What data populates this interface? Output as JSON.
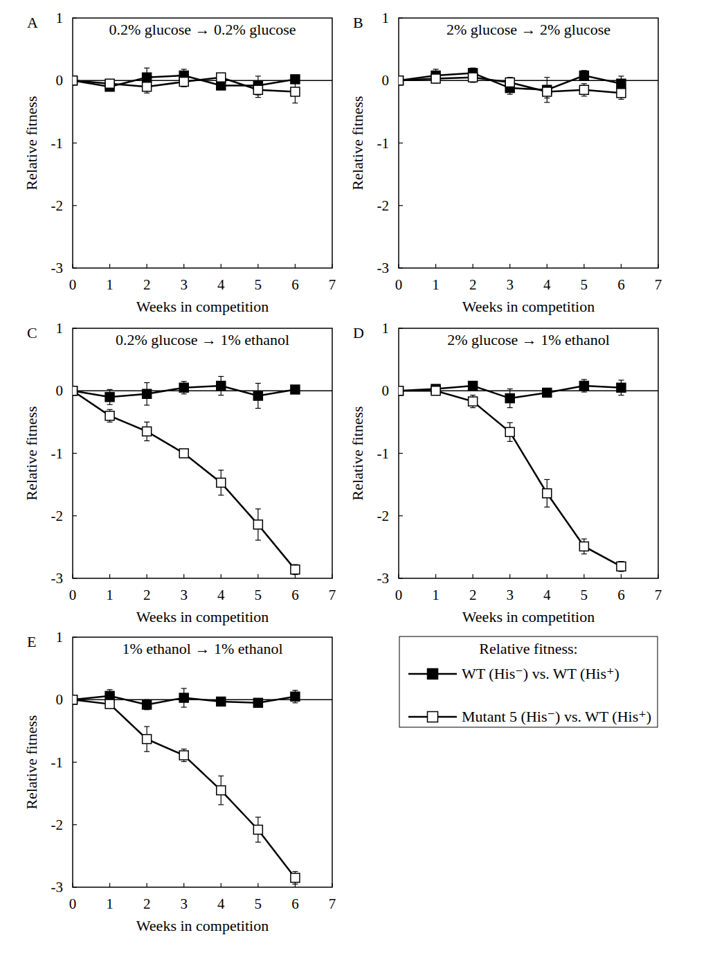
{
  "chart_data": [
    {
      "type": "line",
      "annotation": "A",
      "title": "0.2% glucose → 0.2% glucose",
      "x_label": "Weeks in competition",
      "y_label": "Relative fitness",
      "xlim": [
        0,
        7
      ],
      "xticks": [
        0,
        1,
        2,
        3,
        4,
        5,
        6,
        7
      ],
      "ylim": [
        -3,
        1
      ],
      "yticks": [
        -3,
        -2,
        -1,
        0,
        1
      ],
      "reference_line": 0,
      "legend_title": "Relative fitness:",
      "x": [
        0,
        1,
        2,
        3,
        4,
        5,
        6
      ],
      "series": [
        {
          "name": "WT (His⁻) vs. WT (His⁺)",
          "color": "#000000",
          "marker": "square",
          "values": [
            0,
            -0.1,
            0.05,
            0.08,
            -0.08,
            -0.08,
            0.02
          ],
          "errors": [
            0.03,
            0.06,
            0.15,
            0.1,
            0.06,
            0.15,
            0.05
          ]
        },
        {
          "name": "Mutant 5 (His⁻) vs. WT (His⁺)",
          "color": "#000000",
          "marker": "open-square",
          "values": [
            0,
            -0.05,
            -0.1,
            -0.02,
            0.05,
            -0.15,
            -0.18
          ],
          "errors": [
            0.02,
            0.05,
            0.1,
            0.08,
            0.05,
            0.12,
            0.18
          ]
        }
      ]
    },
    {
      "type": "line",
      "annotation": "B",
      "title": "2% glucose → 2% glucose",
      "x_label": "Weeks in competition",
      "y_label": "Relative fitness",
      "xlim": [
        0,
        7
      ],
      "xticks": [
        0,
        1,
        2,
        3,
        4,
        5,
        6,
        7
      ],
      "ylim": [
        -3,
        1
      ],
      "yticks": [
        -3,
        -2,
        -1,
        0,
        1
      ],
      "reference_line": 0,
      "x": [
        0,
        1,
        2,
        3,
        4,
        5,
        6
      ],
      "series": [
        {
          "color": "#000000",
          "marker": "square",
          "values": [
            0,
            0.08,
            0.12,
            -0.12,
            -0.15,
            0.08,
            -0.05
          ],
          "errors": [
            0.02,
            0.1,
            0.08,
            0.1,
            0.2,
            0.08,
            0.12
          ]
        },
        {
          "color": "#000000",
          "marker": "open-square",
          "values": [
            0,
            0.03,
            0.05,
            -0.03,
            -0.18,
            -0.15,
            -0.2
          ],
          "errors": [
            0.02,
            0.07,
            0.08,
            0.08,
            0.1,
            0.1,
            0.1
          ]
        }
      ]
    },
    {
      "type": "line",
      "annotation": "C",
      "title": "0.2% glucose → 1% ethanol",
      "x_label": "Weeks in competition",
      "y_label": "Relative fitness",
      "xlim": [
        0,
        7
      ],
      "xticks": [
        0,
        1,
        2,
        3,
        4,
        5,
        6,
        7
      ],
      "ylim": [
        -3,
        1
      ],
      "yticks": [
        -3,
        -2,
        -1,
        0,
        1
      ],
      "reference_line": 0,
      "x": [
        0,
        1,
        2,
        3,
        4,
        5,
        6
      ],
      "series": [
        {
          "color": "#000000",
          "marker": "square",
          "values": [
            0,
            -0.1,
            -0.05,
            0.05,
            0.08,
            -0.08,
            0.02
          ],
          "errors": [
            0.02,
            0.12,
            0.18,
            0.1,
            0.15,
            0.2,
            0.06
          ]
        },
        {
          "color": "#000000",
          "marker": "open-square",
          "values": [
            0,
            -0.4,
            -0.65,
            -1.0,
            -1.47,
            -2.14,
            -2.86
          ],
          "errors": [
            0.02,
            0.1,
            0.15,
            0.05,
            0.2,
            0.25,
            0.08
          ]
        }
      ]
    },
    {
      "type": "line",
      "annotation": "D",
      "title": "2% glucose → 1% ethanol",
      "x_label": "Weeks in competition",
      "y_label": "Relative fitness",
      "xlim": [
        0,
        7
      ],
      "xticks": [
        0,
        1,
        2,
        3,
        4,
        5,
        6,
        7
      ],
      "ylim": [
        -3,
        1
      ],
      "yticks": [
        -3,
        -2,
        -1,
        0,
        1
      ],
      "reference_line": 0,
      "x": [
        0,
        1,
        2,
        3,
        4,
        5,
        6
      ],
      "series": [
        {
          "color": "#000000",
          "marker": "square",
          "values": [
            0,
            0.03,
            0.08,
            -0.12,
            -0.03,
            0.08,
            0.05
          ],
          "errors": [
            0.02,
            0.05,
            0.05,
            0.15,
            0.05,
            0.1,
            0.12
          ]
        },
        {
          "color": "#000000",
          "marker": "open-square",
          "values": [
            0,
            0,
            -0.17,
            -0.66,
            -1.64,
            -2.49,
            -2.81
          ],
          "errors": [
            0.02,
            0.05,
            0.1,
            0.15,
            0.22,
            0.12,
            0.08
          ]
        }
      ]
    },
    {
      "type": "line",
      "annotation": "E",
      "title": "1% ethanol → 1% ethanol",
      "x_label": "Weeks in competition",
      "y_label": "Relative fitness",
      "xlim": [
        0,
        7
      ],
      "xticks": [
        0,
        1,
        2,
        3,
        4,
        5,
        6,
        7
      ],
      "ylim": [
        -3,
        1
      ],
      "yticks": [
        -3,
        -2,
        -1,
        0,
        1
      ],
      "reference_line": 0,
      "x": [
        0,
        1,
        2,
        3,
        4,
        5,
        6
      ],
      "series": [
        {
          "color": "#000000",
          "marker": "square",
          "values": [
            0,
            0.06,
            -0.08,
            0.03,
            -0.03,
            -0.05,
            0.05
          ],
          "errors": [
            0.02,
            0.1,
            0.08,
            0.15,
            0.05,
            0.05,
            0.1
          ]
        },
        {
          "color": "#000000",
          "marker": "open-square",
          "values": [
            0,
            -0.07,
            -0.63,
            -0.89,
            -1.45,
            -2.08,
            -2.85
          ],
          "errors": [
            0.02,
            0.05,
            0.2,
            0.1,
            0.23,
            0.2,
            0.1
          ]
        }
      ]
    }
  ]
}
